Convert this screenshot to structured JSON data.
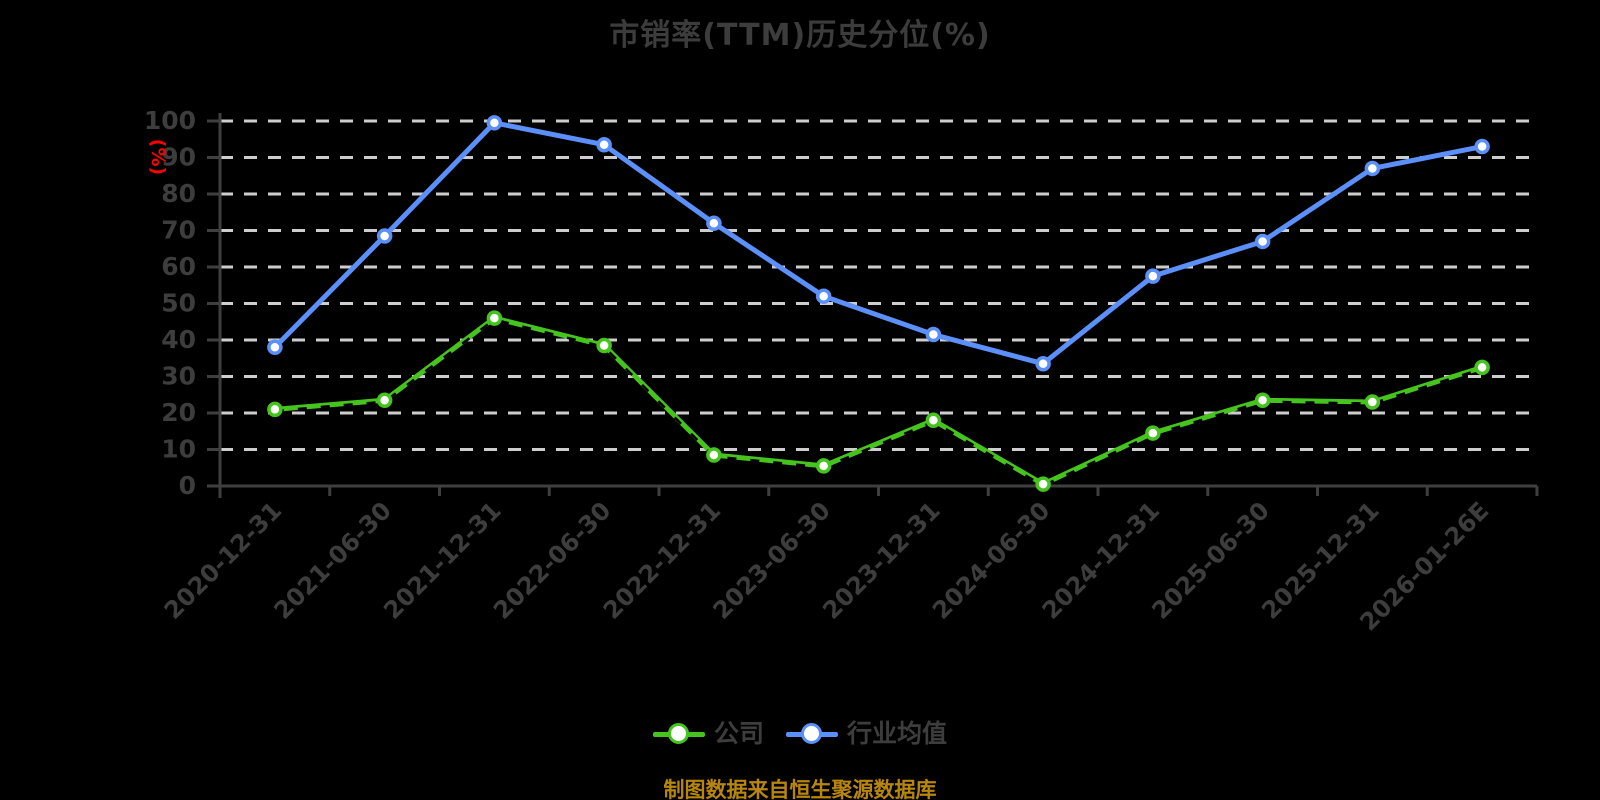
{
  "title": "市销率(TTM)历史分位(%)",
  "footer": "制图数据来自恒生聚源数据库",
  "colors": {
    "background": "#000000",
    "title_text": "#3c3c3c",
    "axis_line": "#3f3f3f",
    "axis_label": "#3d3d3d",
    "gridline": "#cdcdcd",
    "unit_label": "#ff0000",
    "company_series": "#46c41e",
    "industry_series": "#5b8ff9",
    "marker_fill": "#ffffff",
    "company_line_overlay": "#000000",
    "legend_text": "#3d3d3d",
    "footer_text": "#b8860b"
  },
  "legend": {
    "items": [
      {
        "label": "公司"
      },
      {
        "label": "行业均值"
      }
    ]
  },
  "chart_data": {
    "type": "line",
    "title": "市销率(TTM)历史分位(%)",
    "xlabel": "",
    "ylabel": "(%)",
    "ylim": [
      0,
      100
    ],
    "ytick_step": 10,
    "grid": true,
    "grid_style": "dashed",
    "legend_position": "bottom",
    "categories": [
      "2020-12-31",
      "2021-06-30",
      "2021-12-31",
      "2022-06-30",
      "2022-12-31",
      "2023-06-30",
      "2023-12-31",
      "2024-06-30",
      "2024-12-31",
      "2025-06-30",
      "2025-12-31",
      "2026-01-26E"
    ],
    "series": [
      {
        "name": "公司",
        "color": "#46c41e",
        "values": [
          21,
          23.5,
          46,
          38.5,
          8.5,
          5.5,
          18,
          0.5,
          14.5,
          23.5,
          23,
          32.5
        ]
      },
      {
        "name": "行业均值",
        "color": "#5b8ff9",
        "values": [
          38,
          68.5,
          99.5,
          93.5,
          72,
          52,
          41.5,
          33.5,
          57.5,
          67,
          87,
          93
        ]
      }
    ]
  }
}
